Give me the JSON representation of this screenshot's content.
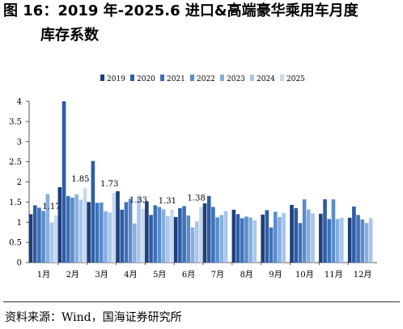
{
  "figure": {
    "title_line1": "图 16：2019 年-2025.6 进口&高端豪华乘用车月度",
    "title_line2": "库存系数",
    "source": "资料来源：Wind，国海证券研究所"
  },
  "chart_data": {
    "type": "bar",
    "categories": [
      "1月",
      "2月",
      "3月",
      "4月",
      "5月",
      "6月",
      "7月",
      "8月",
      "9月",
      "10月",
      "11月",
      "12月"
    ],
    "series": [
      {
        "name": "2019",
        "color": "#1f3f7a",
        "values": [
          1.2,
          1.87,
          1.5,
          1.77,
          1.52,
          1.13,
          1.47,
          1.31,
          1.19,
          1.43,
          1.21,
          1.11
        ]
      },
      {
        "name": "2020",
        "color": "#2e5da6",
        "values": [
          1.42,
          4.0,
          2.52,
          1.31,
          1.18,
          1.35,
          1.65,
          1.2,
          1.3,
          1.35,
          1.57,
          1.39
        ]
      },
      {
        "name": "2021",
        "color": "#3f71b8",
        "values": [
          1.36,
          1.65,
          1.48,
          1.5,
          1.42,
          1.4,
          1.38,
          1.1,
          0.87,
          0.98,
          1.08,
          1.18
        ]
      },
      {
        "name": "2022",
        "color": "#5b8ccc",
        "values": [
          1.28,
          1.61,
          1.49,
          1.58,
          1.38,
          1.17,
          1.12,
          1.14,
          1.26,
          1.57,
          1.57,
          1.07
        ]
      },
      {
        "name": "2023",
        "color": "#86aee0",
        "values": [
          1.7,
          1.69,
          1.27,
          0.97,
          1.32,
          0.87,
          1.18,
          1.12,
          1.13,
          1.32,
          1.08,
          0.98
        ]
      },
      {
        "name": "2024",
        "color": "#a9c6ea",
        "values": [
          1.0,
          1.56,
          1.24,
          1.62,
          1.15,
          1.02,
          1.28,
          1.05,
          1.23,
          1.22,
          1.11,
          1.1
        ]
      },
      {
        "name": "2025",
        "color": "#c9d8ee",
        "values": [
          1.17,
          1.85,
          1.73,
          1.33,
          1.31,
          1.38,
          null,
          null,
          null,
          null,
          null,
          null
        ]
      }
    ],
    "data_labels": [
      "1.17",
      "1.85",
      "1.73",
      "1.33",
      "1.31",
      "1.38"
    ],
    "yticks": [
      "0",
      "0.5",
      "1",
      "1.5",
      "2",
      "2.5",
      "3",
      "3.5",
      "4"
    ],
    "ylim": [
      0,
      4
    ],
    "legend_position": "top-center",
    "grid": false
  }
}
